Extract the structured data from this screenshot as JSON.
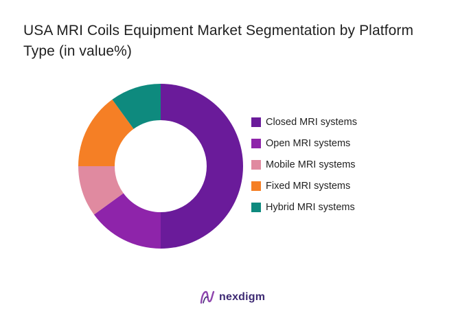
{
  "title": "USA MRI Coils Equipment Market Segmentation by Platform Type (in value%)",
  "chart_data": {
    "type": "pie",
    "donut": true,
    "title": "USA MRI Coils Equipment Market Segmentation by Platform Type (in value%)",
    "categories": [
      "Closed MRI systems",
      "Open MRI systems",
      "Mobile MRI systems",
      "Fixed MRI systems",
      "Hybrid MRI systems"
    ],
    "values": [
      50,
      15,
      10,
      15,
      10
    ],
    "colors": [
      "#6a1b9a",
      "#8e24aa",
      "#e08aa0",
      "#f57f25",
      "#0e8a7e"
    ],
    "legend_position": "right"
  },
  "branding": {
    "name": "nexdigm",
    "logo_icon": "nexdigm-logo-icon"
  }
}
